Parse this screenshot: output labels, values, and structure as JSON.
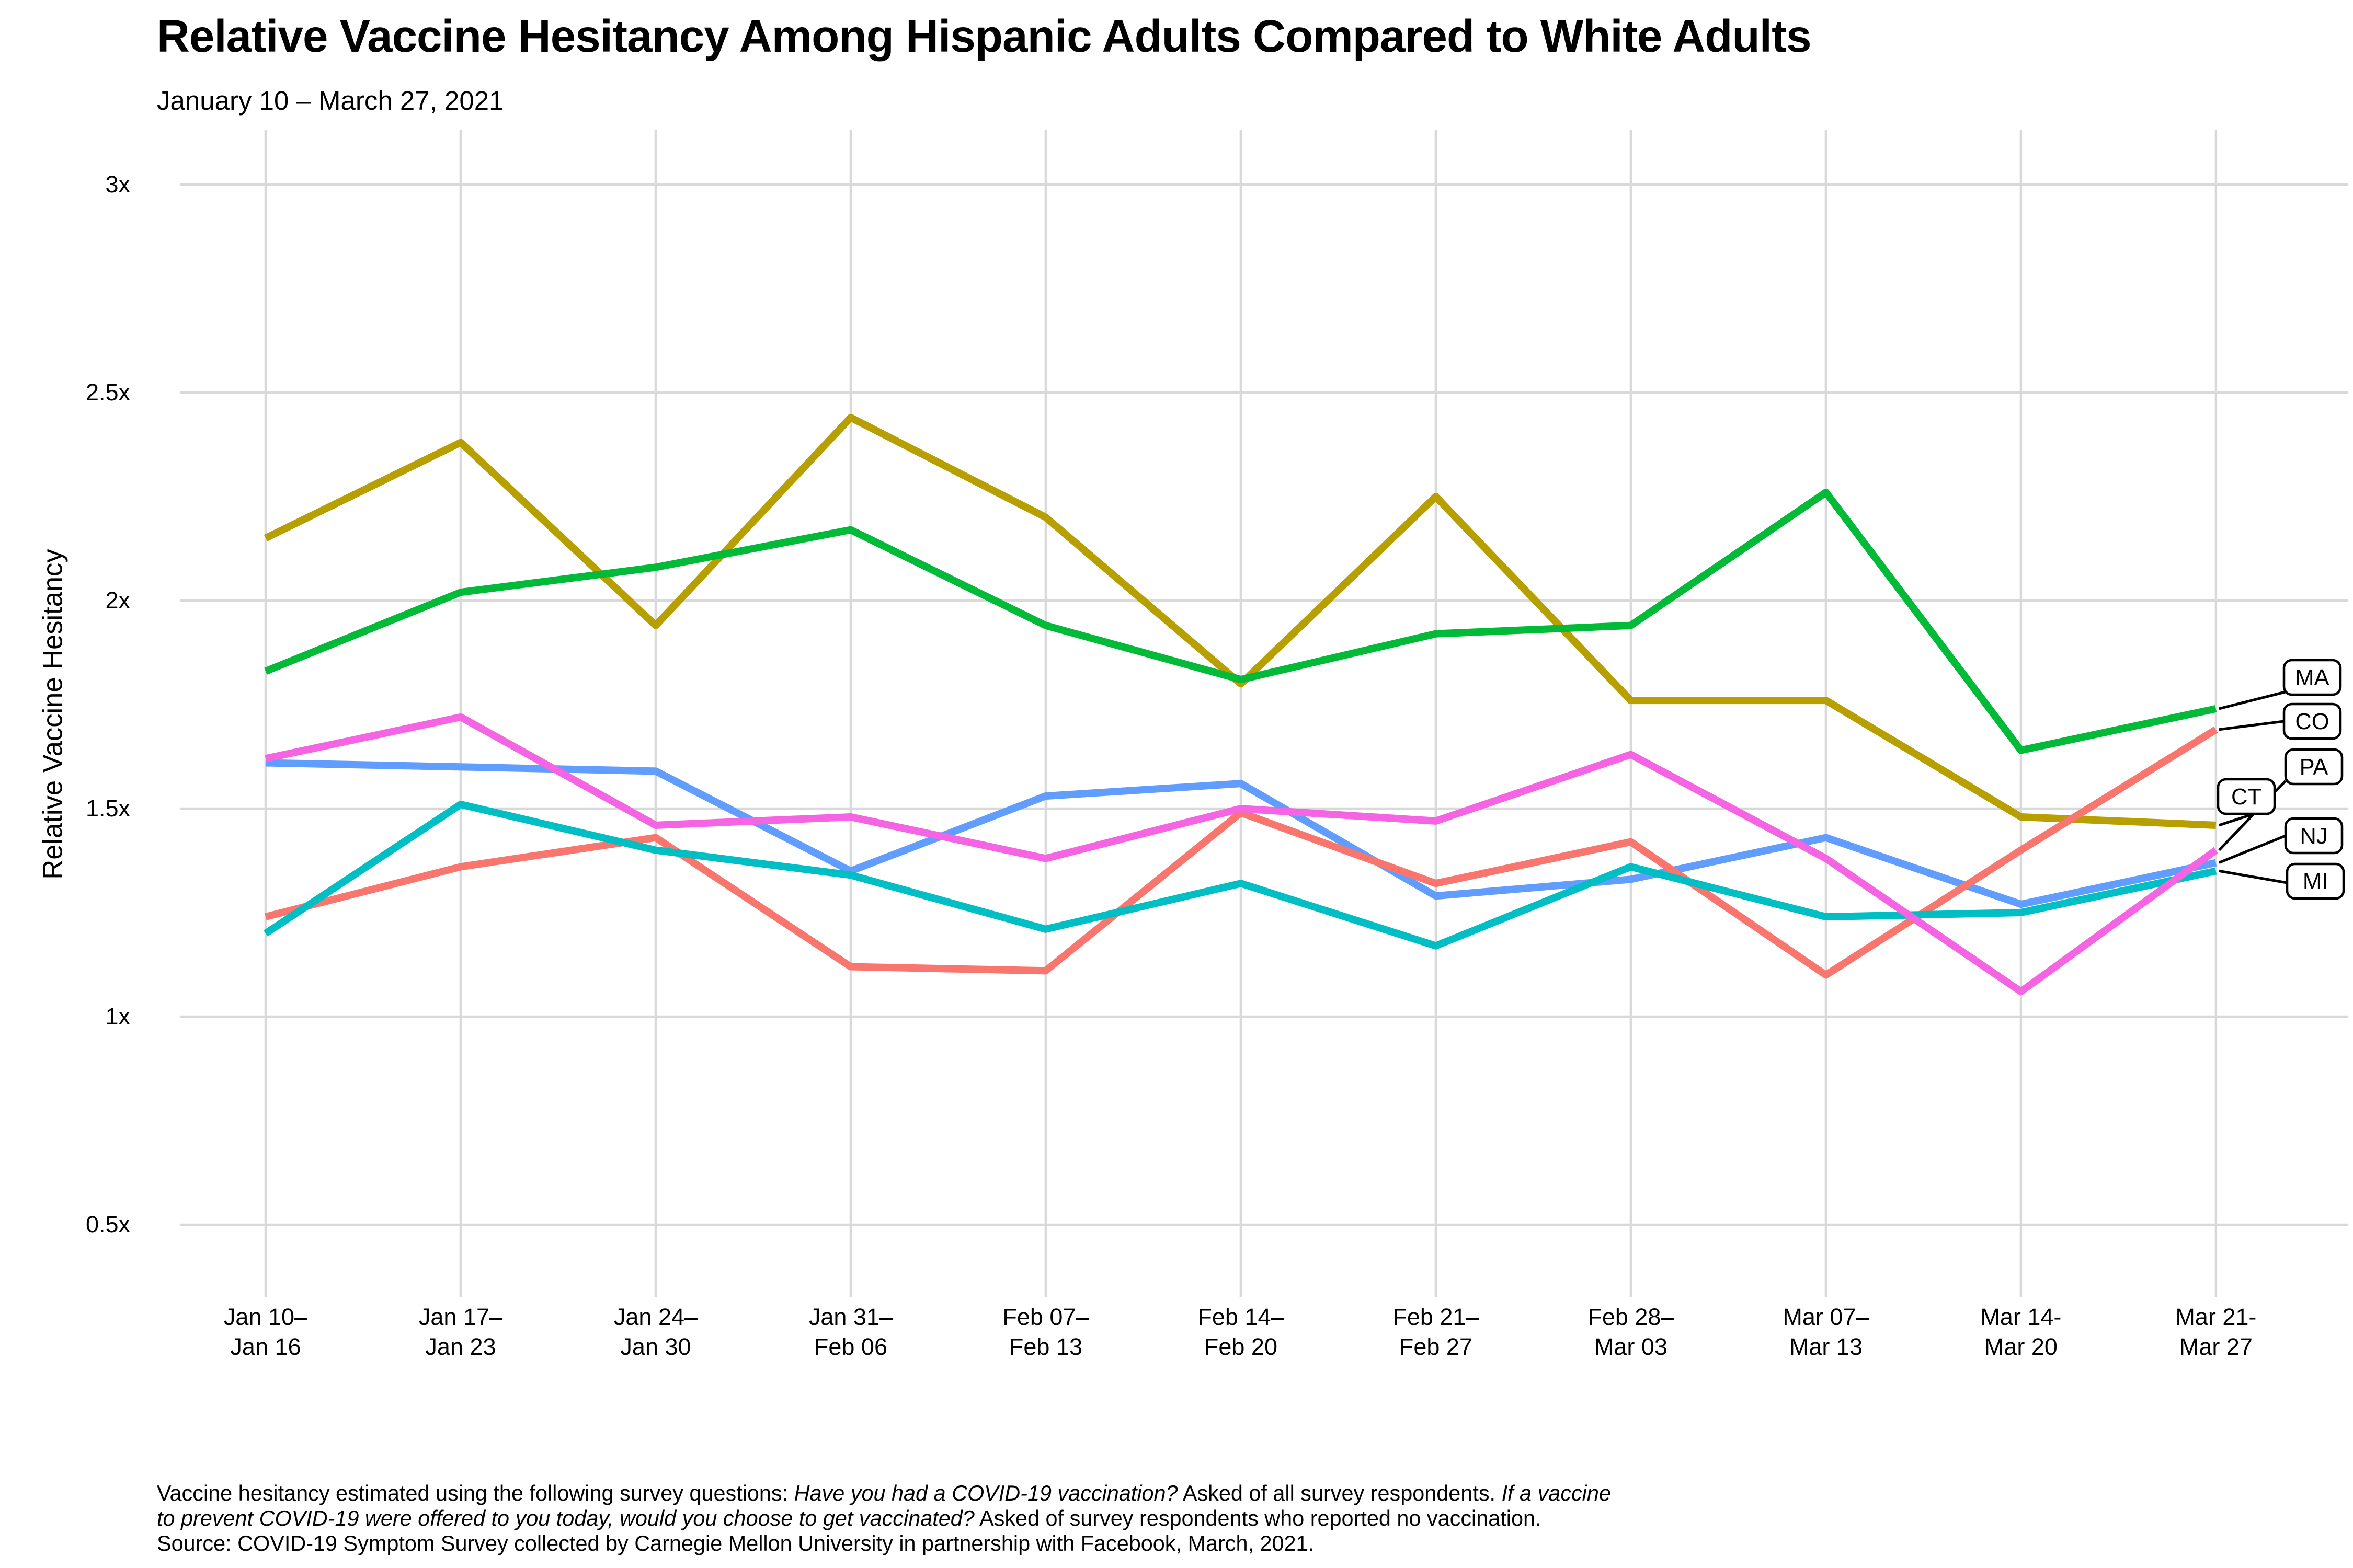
{
  "page": {
    "title": "Relative Vaccine Hesitancy Among Hispanic Adults Compared to White Adults",
    "subtitle": "January 10 – March 27, 2021"
  },
  "chart_data": {
    "type": "line",
    "title": "Relative Vaccine Hesitancy Among Hispanic Adults Compared to White Adults",
    "subtitle": "January 10 – March 27, 2021",
    "xlabel": "",
    "ylabel": "Relative Vaccine Hesitancy",
    "ylim": [
      0.35,
      3.15
    ],
    "grid": true,
    "legend_position": "right-end-labels",
    "y_ticks": [
      {
        "label": "3x",
        "value": 3.0
      },
      {
        "label": "2.5x",
        "value": 2.5
      },
      {
        "label": "2x",
        "value": 2.0
      },
      {
        "label": "1.5x",
        "value": 1.5
      },
      {
        "label": "1x",
        "value": 1.0
      },
      {
        "label": "0.5x",
        "value": 0.5
      }
    ],
    "categories": [
      "Jan 10–Jan 16",
      "Jan 17–Jan 23",
      "Jan 24–Jan 30",
      "Jan 31–Feb 06",
      "Feb 07–Feb 13",
      "Feb 14–Feb 20",
      "Feb 21–Feb 27",
      "Feb 28–Mar 03",
      "Mar 07–Mar 13",
      "Mar 14-Mar 20",
      "Mar 21-Mar 27"
    ],
    "x_tick_lines": [
      [
        "Jan 10–",
        "Jan 16"
      ],
      [
        "Jan 17–",
        "Jan 23"
      ],
      [
        "Jan 24–",
        "Jan 30"
      ],
      [
        "Jan 31–",
        "Feb 06"
      ],
      [
        "Feb 07–",
        "Feb 13"
      ],
      [
        "Feb 14–",
        "Feb 20"
      ],
      [
        "Feb 21–",
        "Feb 27"
      ],
      [
        "Feb 28–",
        "Mar 03"
      ],
      [
        "Mar 07–",
        "Mar 13"
      ],
      [
        "Mar 14-",
        "Mar 20"
      ],
      [
        "Mar 21-",
        "Mar 27"
      ]
    ],
    "series": [
      {
        "id": "NJ",
        "name": "NJ",
        "color": "#619CFF",
        "values": [
          1.61,
          1.6,
          1.59,
          1.35,
          1.53,
          1.56,
          1.29,
          1.33,
          1.43,
          1.27,
          1.37
        ]
      },
      {
        "id": "CT",
        "name": "CT",
        "color": "#B79F00",
        "values": [
          2.15,
          2.38,
          1.94,
          2.44,
          2.2,
          1.8,
          2.25,
          1.76,
          1.76,
          1.48,
          1.46
        ]
      },
      {
        "id": "MA",
        "name": "MA",
        "color": "#00BA38",
        "values": [
          1.83,
          2.02,
          2.08,
          2.17,
          1.94,
          1.81,
          1.92,
          1.94,
          2.26,
          1.64,
          1.74
        ]
      },
      {
        "id": "CO",
        "name": "CO",
        "color": "#F8766D",
        "values": [
          1.24,
          1.36,
          1.43,
          1.12,
          1.11,
          1.49,
          1.32,
          1.42,
          1.1,
          1.4,
          1.69
        ]
      },
      {
        "id": "MI",
        "name": "MI",
        "color": "#00BFC4",
        "values": [
          1.2,
          1.51,
          1.4,
          1.34,
          1.21,
          1.32,
          1.17,
          1.36,
          1.24,
          1.25,
          1.35
        ]
      },
      {
        "id": "PA",
        "name": "PA",
        "color": "#F564E3",
        "values": [
          1.62,
          1.72,
          1.46,
          1.48,
          1.38,
          1.5,
          1.47,
          1.63,
          1.38,
          1.06,
          1.4
        ]
      }
    ],
    "end_label_order_top_to_bottom": [
      "MA",
      "CO",
      "PA",
      "CT",
      "NJ",
      "MI"
    ]
  },
  "caption": {
    "lines": [
      [
        {
          "text": "Vaccine hesitancy estimated using the following survey questions: ",
          "italic": false
        },
        {
          "text": "Have you had a COVID-19 vaccination?",
          "italic": true
        },
        {
          "text": " Asked of all survey respondents. ",
          "italic": false
        },
        {
          "text": "If a vaccine",
          "italic": true
        }
      ],
      [
        {
          "text": "to prevent COVID-19 were offered to you today, would you choose to get vaccinated?",
          "italic": true
        },
        {
          "text": " Asked of survey respondents who reported no vaccination.",
          "italic": false
        }
      ],
      [
        {
          "text": "Source: COVID-19 Symptom Survey collected by Carnegie Mellon University in partnership with Facebook, March, 2021.",
          "italic": false
        }
      ]
    ]
  },
  "colors": {
    "grid": "#D9D9D9",
    "text": "#000000",
    "leader": "#000000",
    "label_box_fill": "#FFFFFF",
    "label_box_border": "#000000",
    "background": "#FFFFFF"
  }
}
